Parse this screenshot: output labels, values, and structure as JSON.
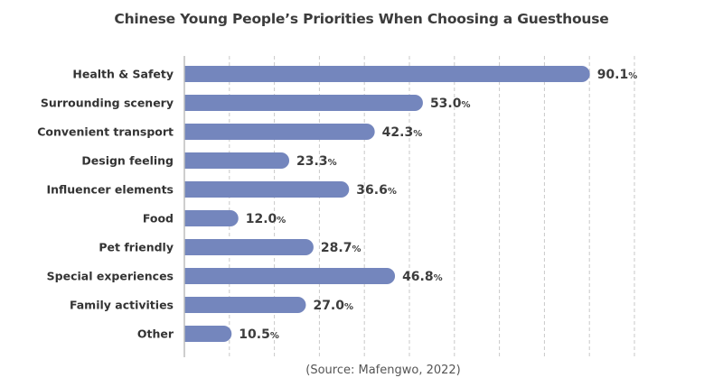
{
  "chart_data": {
    "type": "bar",
    "orientation": "horizontal",
    "title": "Chinese Young People’s Priorities When Choosing a Guesthouse",
    "source": "(Source: Mafengwo, 2022)",
    "xlabel": "",
    "ylabel": "",
    "xlim": [
      0,
      100
    ],
    "grid": true,
    "grid_step": 10,
    "legend": "none",
    "bar_color": "#7486bd",
    "value_suffix": "%",
    "categories": [
      "Health & Safety",
      "Surrounding scenery",
      "Convenient transport",
      "Design feeling",
      "Influencer elements",
      "Food",
      "Pet friendly",
      "Special experiences",
      "Family activities",
      "Other"
    ],
    "values": [
      90.1,
      53.0,
      42.3,
      23.3,
      36.6,
      12.0,
      28.7,
      46.8,
      27.0,
      10.5
    ],
    "value_labels": [
      "90.1",
      "53.0",
      "42.3",
      "23.3",
      "36.6",
      "12.0",
      "28.7",
      "46.8",
      "27.0",
      "10.5"
    ]
  }
}
